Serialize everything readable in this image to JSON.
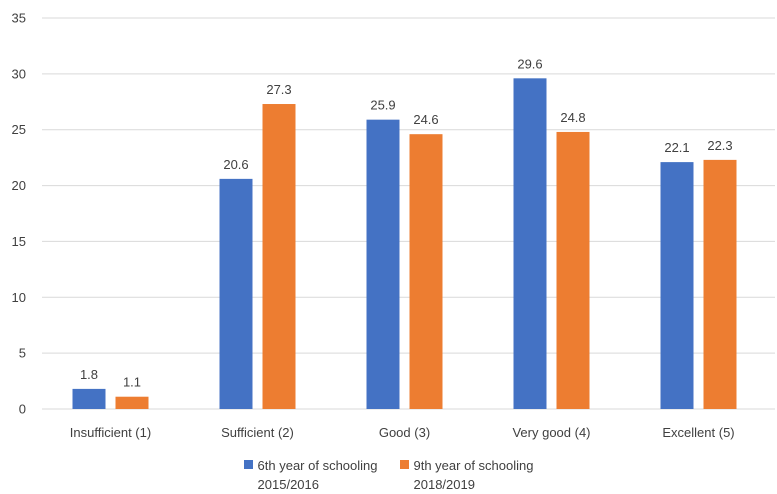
{
  "chart_data": {
    "type": "bar",
    "title": "",
    "xlabel": "",
    "ylabel": "",
    "categories": [
      "Insufficient (1)",
      "Sufficient (2)",
      "Good (3)",
      "Very good (4)",
      "Excellent (5)"
    ],
    "series": [
      {
        "name": "6th year of schooling\n2015/2016",
        "color": "#4472C4",
        "values": [
          1.8,
          20.6,
          25.9,
          29.6,
          22.1
        ]
      },
      {
        "name": "9th year of schooling\n2018/2019",
        "color": "#ED7D31",
        "values": [
          1.1,
          27.3,
          24.6,
          24.8,
          22.3
        ]
      }
    ],
    "ylim": [
      0,
      35
    ],
    "yticks": [
      0,
      5,
      10,
      15,
      20,
      25,
      30,
      35
    ],
    "grid": true,
    "legend_position": "bottom",
    "gridline_color": "#D9D9D9"
  }
}
